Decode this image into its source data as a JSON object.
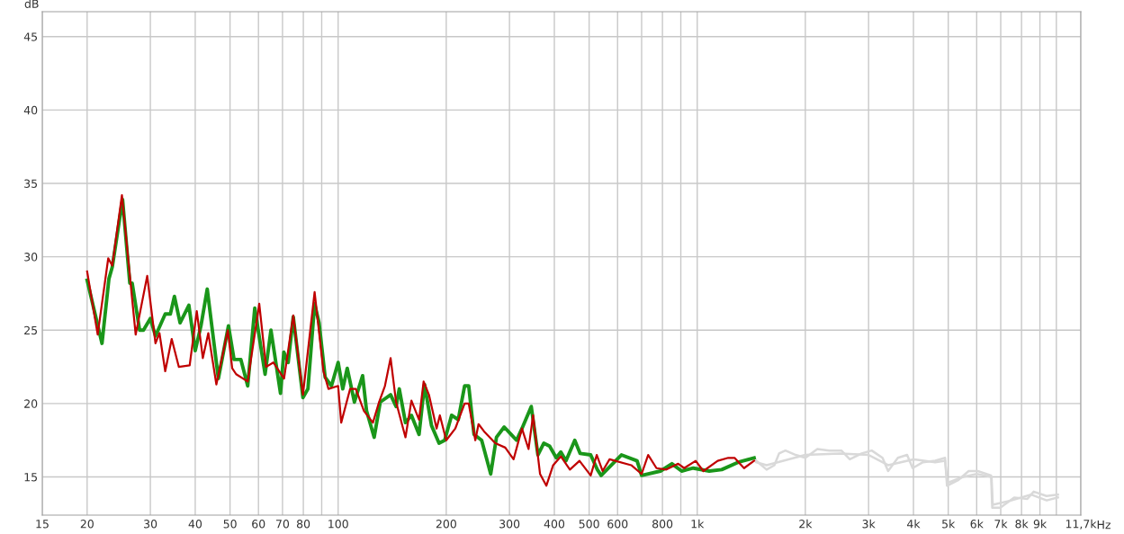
{
  "chart_data": {
    "type": "line",
    "ylabel": "dB",
    "xlim": [
      15,
      11700
    ],
    "ylim": [
      12.4,
      46.7
    ],
    "log": "x",
    "grid": true,
    "marker": "none",
    "line_style": "solid",
    "xticks": [
      15,
      20,
      30,
      40,
      50,
      60,
      70,
      80,
      {
        "value": 90,
        "label": null
      },
      100,
      200,
      300,
      400,
      500,
      600,
      {
        "value": 700,
        "label": null
      },
      800,
      {
        "value": 900,
        "label": null
      },
      {
        "value": 1000,
        "label": "1k"
      },
      {
        "value": 2000,
        "label": "2k"
      },
      {
        "value": 3000,
        "label": "3k"
      },
      {
        "value": 4000,
        "label": "4k"
      },
      {
        "value": 5000,
        "label": "5k"
      },
      {
        "value": 6000,
        "label": "6k"
      },
      {
        "value": 7000,
        "label": "7k"
      },
      {
        "value": 8000,
        "label": "8k"
      },
      {
        "value": 9000,
        "label": "9k"
      },
      {
        "value": 10000,
        "label": null
      },
      {
        "value": 11700,
        "label": "11,7k"
      }
    ],
    "xlabel": "Hz",
    "yticks": [
      15,
      20,
      25,
      30,
      35,
      40,
      45
    ],
    "series": [
      {
        "color": "#c00000",
        "x": [
          20,
          21.4,
          22.9,
          23.5,
          25.0,
          27.3,
          29.4,
          31,
          31.8,
          33.0,
          34.4,
          36,
          38.6,
          40.4,
          42,
          43.5,
          45.8,
          49.3,
          50.7,
          52,
          56,
          60.3,
          63,
          66,
          70.7,
          75,
          79.8,
          86,
          91,
          94,
          100,
          102,
          108,
          112,
          118,
          125,
          130,
          135,
          140,
          145,
          154,
          160,
          168,
          173,
          179,
          188,
          192,
          200,
          212,
          225,
          231,
          241,
          246,
          255,
          274,
          292,
          308,
          325,
          339,
          349,
          365,
          380,
          397,
          417,
          442,
          470,
          505,
          525,
          545,
          570,
          655,
          700,
          730,
          770,
          820,
          885,
          920,
          990,
          1040,
          1140,
          1220,
          1270,
          1350,
          1440
        ],
        "values": [
          29.0,
          24.7,
          29.9,
          29.4,
          34.2,
          24.7,
          28.7,
          24.1,
          24.8,
          22.2,
          24.4,
          22.5,
          22.6,
          26.3,
          23.1,
          24.8,
          21.3,
          25.0,
          22.4,
          22.0,
          21.5,
          26.8,
          22.5,
          22.8,
          21.7,
          26.0,
          20.6,
          27.6,
          22.2,
          21.0,
          21.2,
          18.7,
          21.0,
          21.0,
          19.5,
          18.7,
          20.1,
          21.2,
          23.1,
          20.1,
          17.7,
          20.2,
          18.9,
          21.5,
          20.6,
          18.3,
          19.2,
          17.5,
          18.3,
          20.0,
          20.0,
          17.5,
          18.6,
          18.1,
          17.3,
          17.0,
          16.2,
          18.3,
          16.9,
          19.2,
          15.2,
          14.4,
          15.8,
          16.4,
          15.5,
          16.1,
          15.1,
          16.5,
          15.4,
          16.2,
          15.8,
          15.2,
          16.5,
          15.6,
          15.5,
          15.9,
          15.6,
          16.1,
          15.4,
          16.1,
          16.3,
          16.3,
          15.6,
          16.1
        ]
      },
      {
        "color": "#1a961a",
        "x": [
          20,
          22,
          23.0,
          23.5,
          25.1,
          26.3,
          26.7,
          28.0,
          28.7,
          30.0,
          31.0,
          33.0,
          34.1,
          35,
          36.3,
          38.4,
          40,
          41.5,
          43.2,
          46.4,
          49.5,
          51.3,
          53.6,
          56.0,
          58.6,
          62.6,
          65,
          69.1,
          70.6,
          72.6,
          75,
          79.8,
          82.4,
          86,
          88.5,
          92,
          95.8,
          100,
          103,
          106,
          111,
          117,
          120,
          126,
          131,
          140,
          145,
          148,
          154,
          160,
          168,
          174,
          182,
          191,
          198,
          207,
          216,
          225,
          231,
          239,
          251,
          266,
          276,
          290,
          303,
          314,
          325,
          345,
          360,
          374,
          388,
          405,
          417,
          431,
          456,
          472,
          505,
          527,
          540,
          615,
          680,
          700,
          790,
          850,
          905,
          975,
          1080,
          1170,
          1300,
          1440
        ],
        "values": [
          28.4,
          24.1,
          28.5,
          29.3,
          33.9,
          28.2,
          28.2,
          25.0,
          25.0,
          25.8,
          24.6,
          26.1,
          26.1,
          27.3,
          25.5,
          26.7,
          23.6,
          25.3,
          27.8,
          21.7,
          25.3,
          23.0,
          23.0,
          21.2,
          26.5,
          22.0,
          25.0,
          20.7,
          23.5,
          22.8,
          25.9,
          20.4,
          21.0,
          26.8,
          25.5,
          21.8,
          21.2,
          22.8,
          21.0,
          22.4,
          20.1,
          21.9,
          19.5,
          17.7,
          20.1,
          20.6,
          19.8,
          21.0,
          18.7,
          19.2,
          17.9,
          21.3,
          18.5,
          17.3,
          17.5,
          19.2,
          18.9,
          21.2,
          21.2,
          17.9,
          17.5,
          15.2,
          17.7,
          18.4,
          17.9,
          17.5,
          18.3,
          19.8,
          16.5,
          17.3,
          17.1,
          16.3,
          16.7,
          16.1,
          17.5,
          16.6,
          16.5,
          15.5,
          15.1,
          16.5,
          16.1,
          15.1,
          15.4,
          15.9,
          15.4,
          15.6,
          15.4,
          15.5,
          16.0,
          16.3
        ]
      },
      {
        "color": "#d9d9d9",
        "x": [
          1460,
          1560,
          1640,
          1690,
          1760,
          1880,
          2000,
          2160,
          2330,
          2520,
          2660,
          2870,
          3060,
          3280,
          3400,
          3620,
          3840,
          3980,
          4250,
          4600,
          4900,
          4960,
          5340,
          5700,
          6040,
          6580,
          6630,
          6980,
          7630,
          8300,
          8650,
          9390,
          10100
        ],
        "values": [
          16.1,
          15.5,
          15.8,
          16.6,
          16.8,
          16.5,
          16.3,
          16.9,
          16.8,
          16.8,
          16.2,
          16.6,
          16.8,
          16.3,
          15.4,
          16.3,
          16.5,
          15.6,
          16.0,
          16.1,
          16.3,
          14.4,
          14.8,
          15.4,
          15.4,
          15.1,
          12.9,
          12.9,
          13.6,
          13.5,
          14.0,
          13.7,
          13.8
        ]
      },
      {
        "color": "#d9d9d9",
        "x": [
          1460,
          1560,
          2000,
          2500,
          3000,
          3400,
          4000,
          4600,
          4900,
          4970,
          5500,
          6000,
          6600,
          6650,
          7500,
          8500,
          9400,
          10100
        ],
        "values": [
          16.0,
          15.8,
          16.5,
          16.6,
          16.5,
          15.8,
          16.2,
          16.0,
          16.1,
          14.6,
          15.0,
          15.2,
          15.0,
          13.1,
          13.4,
          13.8,
          13.4,
          13.6
        ]
      }
    ]
  }
}
